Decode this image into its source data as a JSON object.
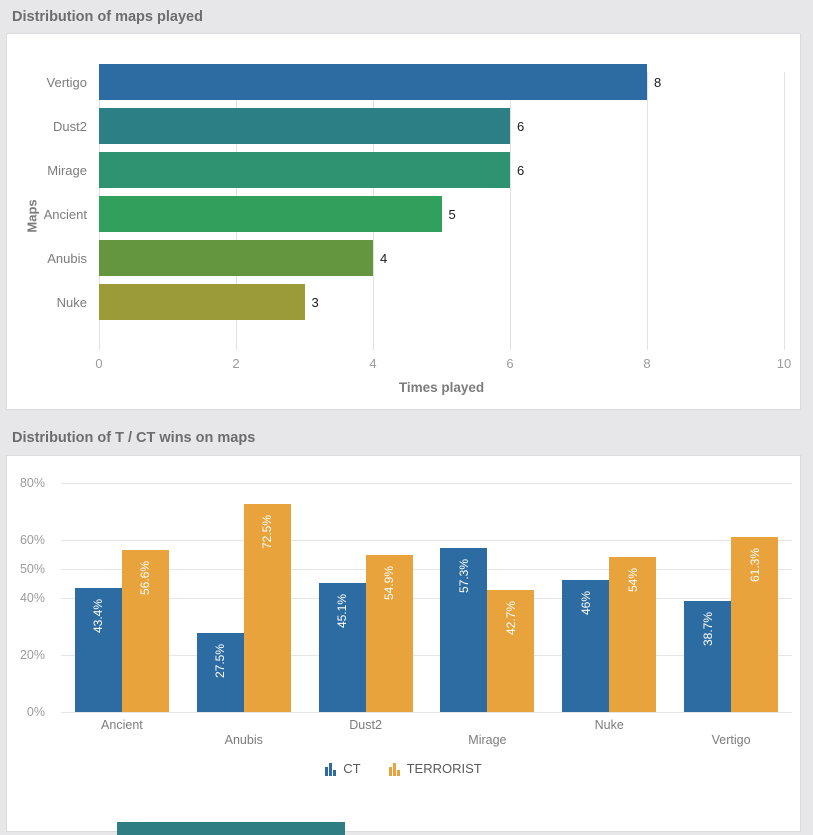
{
  "page": {
    "background": "#e7e7e9"
  },
  "chart_data": [
    {
      "type": "bar",
      "orientation": "horizontal",
      "title": "Distribution of maps played",
      "categories": [
        "Vertigo",
        "Dust2",
        "Mirage",
        "Ancient",
        "Anubis",
        "Nuke"
      ],
      "values": [
        8,
        6,
        6,
        5,
        4,
        3
      ],
      "value_labels": [
        "8",
        "6",
        "6",
        "5",
        "4",
        "3"
      ],
      "bar_colors": [
        "#2d6ca3",
        "#2b7f85",
        "#2f9270",
        "#31a05d",
        "#64953f",
        "#9b9c38"
      ],
      "xlabel": "Times played",
      "ylabel": "Maps",
      "xlim": [
        0,
        10
      ],
      "xticks": [
        0,
        2,
        4,
        6,
        8,
        10
      ],
      "grid": true,
      "legend": "none"
    },
    {
      "type": "bar",
      "orientation": "vertical",
      "grouped": true,
      "title": "Distribution of T / CT wins on maps",
      "categories": [
        "Ancient",
        "Anubis",
        "Dust2",
        "Mirage",
        "Nuke",
        "Vertigo"
      ],
      "series": [
        {
          "name": "CT",
          "color": "#2d6ca3",
          "values": [
            43.4,
            27.5,
            45.1,
            57.3,
            46,
            38.7
          ],
          "value_labels": [
            "43.4%",
            "27.5%",
            "45.1%",
            "57.3%",
            "46%",
            "38.7%"
          ]
        },
        {
          "name": "TERRORIST",
          "color": "#e8a33c",
          "values": [
            56.6,
            72.5,
            54.9,
            42.7,
            54,
            61.3
          ],
          "value_labels": [
            "56.6%",
            "72.5%",
            "54.9%",
            "42.7%",
            "54%",
            "61.3%"
          ]
        }
      ],
      "ylim": [
        0,
        80
      ],
      "yticks": [
        0,
        20,
        40,
        50,
        60,
        80
      ],
      "ytick_labels": [
        "0%",
        "20%",
        "40%",
        "50%",
        "60%",
        "80%"
      ],
      "grid": true,
      "legend_position": "bottom"
    }
  ],
  "bottom_partial_bar": {
    "color": "#2e7e83"
  }
}
